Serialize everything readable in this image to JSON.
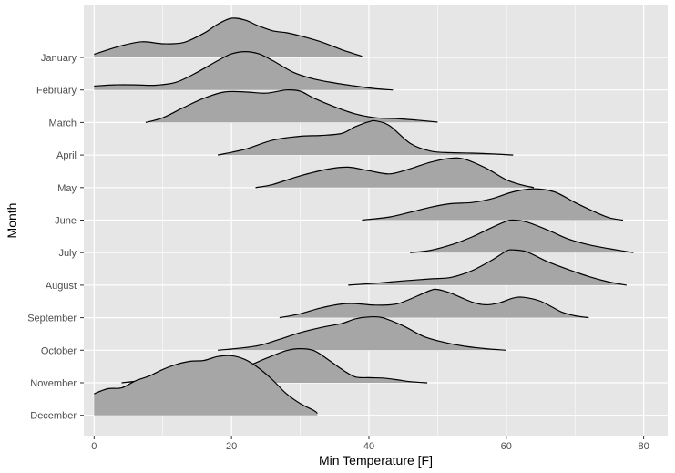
{
  "chart_data": {
    "type": "ridgeline",
    "xlabel": "Min Temperature [F]",
    "ylabel": "Month",
    "xlim": [
      -1.5,
      83.5
    ],
    "x_ticks": [
      0,
      20,
      40,
      60,
      80
    ],
    "grid": true,
    "colors": {
      "panel": "#e6e6e6",
      "grid": "#ffffff",
      "fill": "#a6a6a6",
      "line": "#000000"
    },
    "series": [
      {
        "name": "January",
        "points": [
          [
            0,
            0.08
          ],
          [
            4,
            0.3
          ],
          [
            7,
            0.4
          ],
          [
            10,
            0.35
          ],
          [
            13,
            0.38
          ],
          [
            16,
            0.62
          ],
          [
            18,
            0.85
          ],
          [
            20,
            1.0
          ],
          [
            22,
            0.95
          ],
          [
            24,
            0.8
          ],
          [
            26,
            0.68
          ],
          [
            28,
            0.63
          ],
          [
            30,
            0.55
          ],
          [
            33,
            0.4
          ],
          [
            36,
            0.2
          ],
          [
            39,
            0.03
          ]
        ]
      },
      {
        "name": "February",
        "points": [
          [
            0,
            0.1
          ],
          [
            3,
            0.13
          ],
          [
            6,
            0.13
          ],
          [
            9,
            0.12
          ],
          [
            12,
            0.2
          ],
          [
            15,
            0.45
          ],
          [
            18,
            0.75
          ],
          [
            20,
            0.92
          ],
          [
            22,
            0.98
          ],
          [
            24,
            0.92
          ],
          [
            26,
            0.75
          ],
          [
            29,
            0.45
          ],
          [
            32,
            0.28
          ],
          [
            35,
            0.18
          ],
          [
            38,
            0.1
          ],
          [
            41,
            0.03
          ],
          [
            43.5,
            0.0
          ]
        ]
      },
      {
        "name": "March",
        "points": [
          [
            7.5,
            0.0
          ],
          [
            10,
            0.12
          ],
          [
            13,
            0.38
          ],
          [
            16,
            0.62
          ],
          [
            19,
            0.78
          ],
          [
            22,
            0.78
          ],
          [
            25,
            0.75
          ],
          [
            28,
            0.83
          ],
          [
            30,
            0.8
          ],
          [
            32,
            0.62
          ],
          [
            35,
            0.4
          ],
          [
            38,
            0.22
          ],
          [
            41,
            0.12
          ],
          [
            44,
            0.1
          ],
          [
            47,
            0.06
          ],
          [
            50,
            0.01
          ]
        ]
      },
      {
        "name": "April",
        "points": [
          [
            18,
            0.0
          ],
          [
            22,
            0.15
          ],
          [
            26,
            0.38
          ],
          [
            30,
            0.48
          ],
          [
            33,
            0.5
          ],
          [
            36,
            0.55
          ],
          [
            38,
            0.72
          ],
          [
            40,
            0.85
          ],
          [
            41,
            0.87
          ],
          [
            43,
            0.75
          ],
          [
            46,
            0.3
          ],
          [
            49,
            0.1
          ],
          [
            52,
            0.06
          ],
          [
            55,
            0.05
          ],
          [
            58,
            0.03
          ],
          [
            61,
            0.0
          ]
        ]
      },
      {
        "name": "May",
        "points": [
          [
            23.5,
            0.0
          ],
          [
            26,
            0.08
          ],
          [
            30,
            0.3
          ],
          [
            34,
            0.47
          ],
          [
            37,
            0.52
          ],
          [
            40,
            0.43
          ],
          [
            43,
            0.35
          ],
          [
            46,
            0.48
          ],
          [
            49,
            0.65
          ],
          [
            52,
            0.75
          ],
          [
            54,
            0.72
          ],
          [
            57,
            0.5
          ],
          [
            60,
            0.2
          ],
          [
            62,
            0.08
          ],
          [
            64,
            0.0
          ]
        ]
      },
      {
        "name": "June",
        "points": [
          [
            39,
            0.0
          ],
          [
            43,
            0.08
          ],
          [
            46,
            0.2
          ],
          [
            49,
            0.33
          ],
          [
            52,
            0.42
          ],
          [
            55,
            0.45
          ],
          [
            58,
            0.55
          ],
          [
            61,
            0.72
          ],
          [
            64,
            0.8
          ],
          [
            67,
            0.72
          ],
          [
            70,
            0.45
          ],
          [
            73,
            0.2
          ],
          [
            75,
            0.06
          ],
          [
            77,
            0.0
          ]
        ]
      },
      {
        "name": "July",
        "points": [
          [
            46,
            0.0
          ],
          [
            49,
            0.06
          ],
          [
            52,
            0.2
          ],
          [
            55,
            0.4
          ],
          [
            58,
            0.65
          ],
          [
            60,
            0.8
          ],
          [
            61,
            0.83
          ],
          [
            63,
            0.78
          ],
          [
            66,
            0.58
          ],
          [
            69,
            0.35
          ],
          [
            72,
            0.2
          ],
          [
            75,
            0.1
          ],
          [
            78.5,
            0.0
          ]
        ]
      },
      {
        "name": "August",
        "points": [
          [
            37,
            0.0
          ],
          [
            41,
            0.05
          ],
          [
            45,
            0.11
          ],
          [
            49,
            0.16
          ],
          [
            52,
            0.2
          ],
          [
            55,
            0.37
          ],
          [
            58,
            0.65
          ],
          [
            60,
            0.87
          ],
          [
            61,
            0.9
          ],
          [
            63,
            0.85
          ],
          [
            66,
            0.6
          ],
          [
            69,
            0.4
          ],
          [
            72,
            0.22
          ],
          [
            75,
            0.08
          ],
          [
            77.5,
            0.0
          ]
        ]
      },
      {
        "name": "September",
        "points": [
          [
            27,
            0.0
          ],
          [
            30,
            0.1
          ],
          [
            33,
            0.25
          ],
          [
            36,
            0.35
          ],
          [
            38,
            0.36
          ],
          [
            41,
            0.32
          ],
          [
            44,
            0.35
          ],
          [
            47,
            0.55
          ],
          [
            49,
            0.7
          ],
          [
            50,
            0.72
          ],
          [
            52,
            0.62
          ],
          [
            55,
            0.4
          ],
          [
            57,
            0.33
          ],
          [
            59,
            0.38
          ],
          [
            61,
            0.5
          ],
          [
            62.5,
            0.52
          ],
          [
            65,
            0.42
          ],
          [
            68,
            0.15
          ],
          [
            70,
            0.05
          ],
          [
            72,
            0.0
          ]
        ]
      },
      {
        "name": "October",
        "points": [
          [
            18,
            0.0
          ],
          [
            21,
            0.05
          ],
          [
            24,
            0.12
          ],
          [
            27,
            0.28
          ],
          [
            30,
            0.45
          ],
          [
            33,
            0.58
          ],
          [
            36,
            0.68
          ],
          [
            38,
            0.8
          ],
          [
            40,
            0.85
          ],
          [
            42,
            0.83
          ],
          [
            45,
            0.62
          ],
          [
            48,
            0.35
          ],
          [
            51,
            0.2
          ],
          [
            54,
            0.1
          ],
          [
            57,
            0.04
          ],
          [
            60,
            0.0
          ]
        ]
      },
      {
        "name": "November",
        "points": [
          [
            4,
            0.0
          ],
          [
            7,
            0.05
          ],
          [
            10,
            0.07
          ],
          [
            13,
            0.08
          ],
          [
            16,
            0.13
          ],
          [
            19,
            0.25
          ],
          [
            22,
            0.4
          ],
          [
            25,
            0.62
          ],
          [
            28,
            0.82
          ],
          [
            30,
            0.87
          ],
          [
            32,
            0.82
          ],
          [
            34,
            0.6
          ],
          [
            36,
            0.35
          ],
          [
            38,
            0.15
          ],
          [
            40,
            0.13
          ],
          [
            42,
            0.12
          ],
          [
            44,
            0.08
          ],
          [
            46,
            0.03
          ],
          [
            48.5,
            0.0
          ]
        ]
      },
      {
        "name": "December",
        "points": [
          [
            0,
            0.55
          ],
          [
            2,
            0.68
          ],
          [
            4,
            0.7
          ],
          [
            6,
            0.88
          ],
          [
            8,
            1.0
          ],
          [
            10,
            1.17
          ],
          [
            12,
            1.3
          ],
          [
            14,
            1.38
          ],
          [
            16,
            1.4
          ],
          [
            18,
            1.5
          ],
          [
            20,
            1.52
          ],
          [
            22,
            1.42
          ],
          [
            24,
            1.2
          ],
          [
            26,
            0.9
          ],
          [
            28,
            0.55
          ],
          [
            30,
            0.3
          ],
          [
            32,
            0.12
          ],
          [
            32.5,
            0.05
          ]
        ]
      }
    ]
  }
}
